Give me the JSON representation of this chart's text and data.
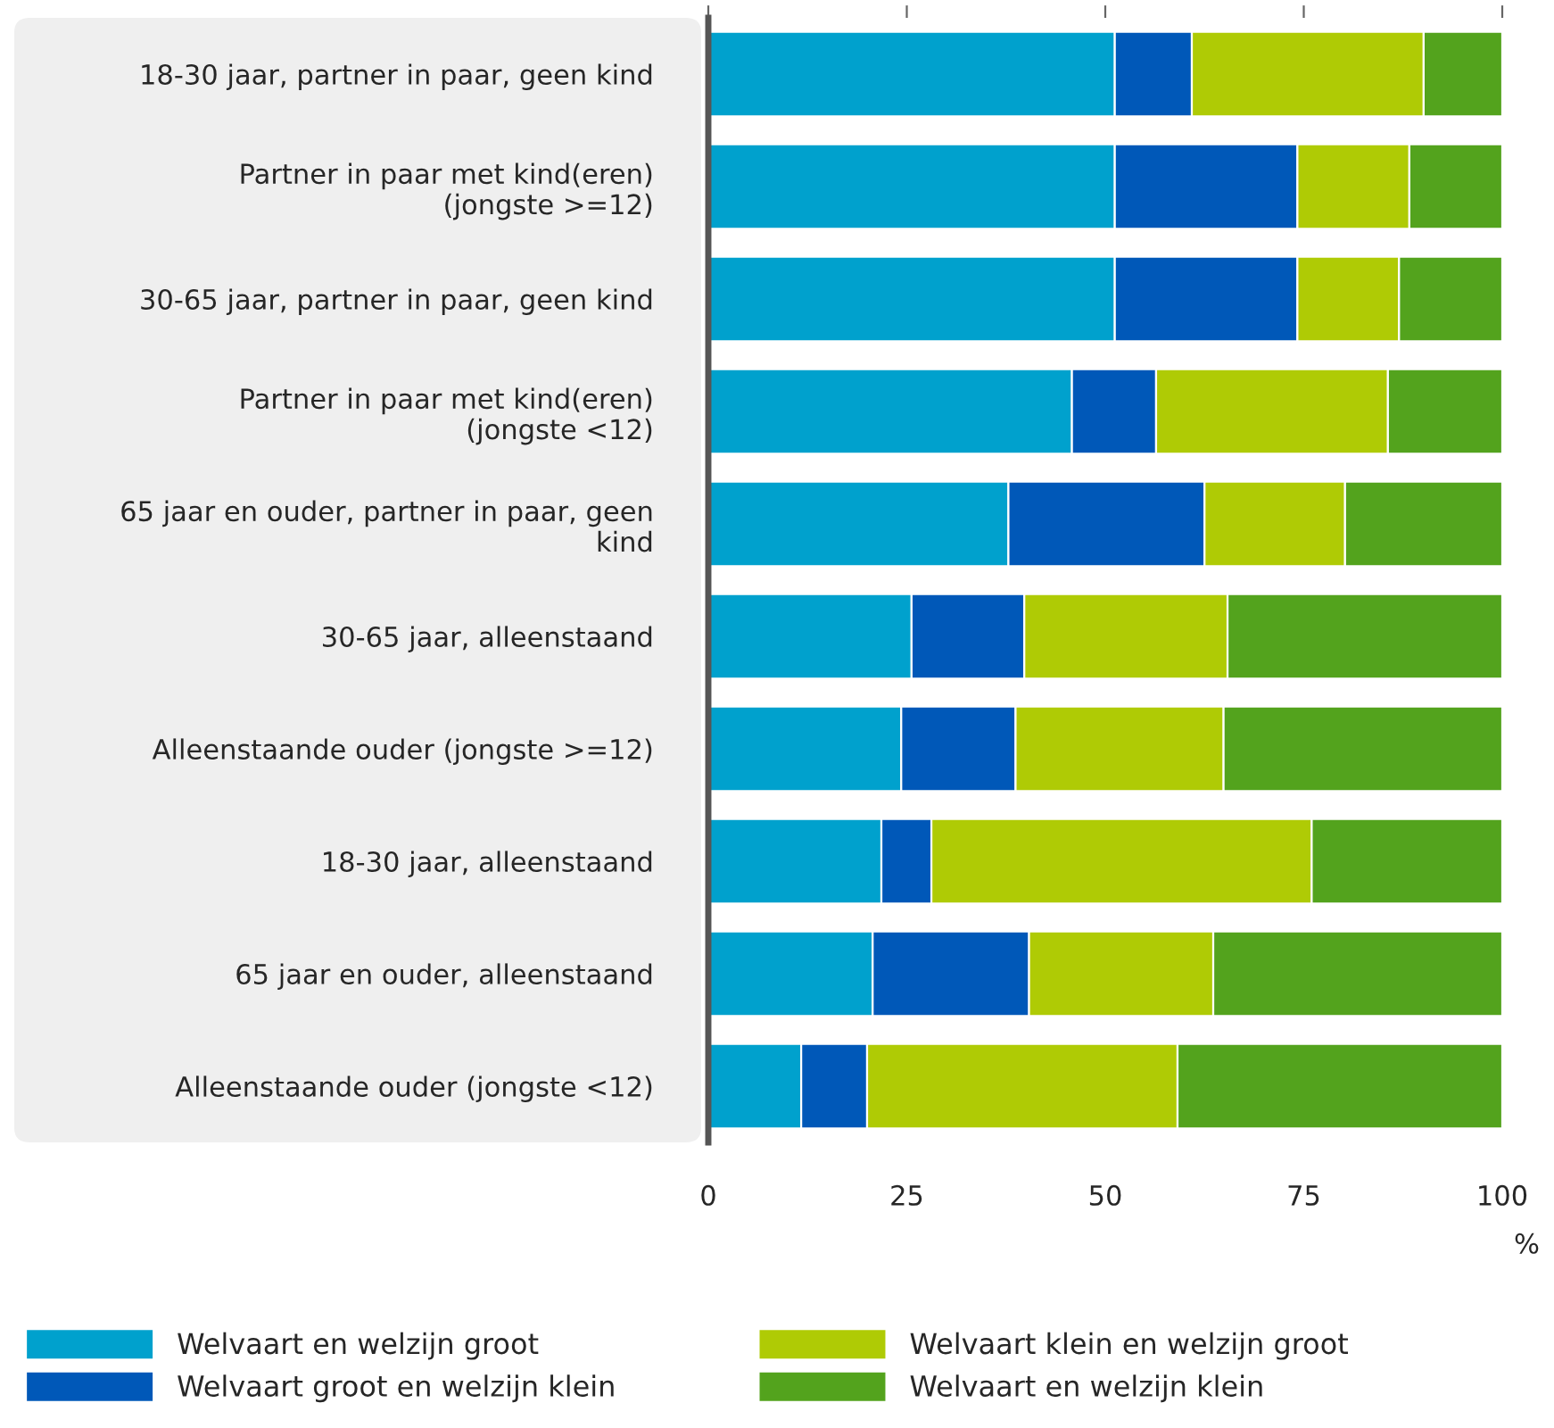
{
  "chart_data": {
    "type": "bar",
    "orientation": "horizontal",
    "stacked": true,
    "categories": [
      "18-30 jaar, partner in paar, geen kind",
      "Partner in paar met kind(eren)\n(jongste >=12)",
      "30-65 jaar, partner in paar, geen kind",
      "Partner in paar met kind(eren)\n(jongste <12)",
      "65 jaar en ouder, partner in paar, geen\nkind",
      "30-65 jaar, alleenstaand",
      "Alleenstaande ouder (jongste >=12)",
      "18-30 jaar, alleenstaand",
      "65 jaar en ouder, alleenstaand",
      "Alleenstaande ouder (jongste <12)"
    ],
    "series": [
      {
        "name": "Welvaart en welzijn groot",
        "color": "#00a1cd",
        "values": [
          51.2,
          51.2,
          51.2,
          45.8,
          37.8,
          25.6,
          24.3,
          21.8,
          20.7,
          11.7
        ]
      },
      {
        "name": "Welvaart groot en welzijn klein",
        "color": "#0058b8",
        "values": [
          9.7,
          23.0,
          23.0,
          10.6,
          24.7,
          14.2,
          14.4,
          6.3,
          19.7,
          8.3
        ]
      },
      {
        "name": "Welvaart klein en welzijn groot",
        "color": "#afcb05",
        "values": [
          29.2,
          14.1,
          12.8,
          29.2,
          17.7,
          25.6,
          26.2,
          47.9,
          23.2,
          39.1
        ]
      },
      {
        "name": "Welvaart en welzijn klein",
        "color": "#53a31d",
        "values": [
          9.9,
          11.7,
          13.0,
          14.4,
          19.8,
          34.6,
          35.1,
          24.0,
          36.4,
          40.9
        ]
      }
    ],
    "xlim": [
      0,
      100
    ],
    "xticks": [
      0,
      25,
      50,
      75,
      100
    ],
    "xlabel": "%",
    "grid": false,
    "legend": "bottom"
  }
}
